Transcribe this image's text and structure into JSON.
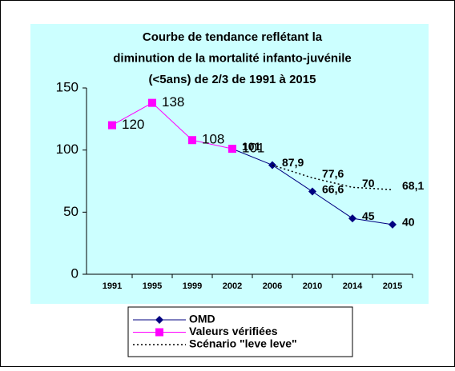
{
  "chart_data": {
    "type": "line",
    "title": [
      "Courbe de tendance reflétant la",
      "diminution de la mortalité infanto-juvénile",
      "(<5ans) de  2/3 de 1991 à 2015"
    ],
    "categories": [
      "1991",
      "1995",
      "1999",
      "2002",
      "2006",
      "2010",
      "2014",
      "2015"
    ],
    "series": [
      {
        "name": "OMD",
        "color": "#000080",
        "marker": "diamond",
        "values": [
          null,
          null,
          null,
          101,
          87.9,
          66.6,
          45,
          40
        ],
        "value_labels": [
          null,
          null,
          null,
          "101",
          "87,9",
          "66,6",
          "45",
          "40"
        ]
      },
      {
        "name": "Valeurs vérifiées",
        "color": "#ff00ff",
        "marker": "square",
        "values": [
          120,
          138,
          108,
          101,
          null,
          null,
          null,
          null
        ],
        "value_labels": [
          "120",
          "138",
          "108",
          "101",
          null,
          null,
          null,
          null
        ]
      },
      {
        "name": "Scénario \"leve leve\"",
        "color": "#000000",
        "dash": true,
        "values": [
          null,
          null,
          null,
          null,
          87.9,
          77.6,
          70,
          68.1
        ],
        "value_labels": [
          null,
          null,
          null,
          null,
          null,
          "77,6",
          "70",
          "68,1"
        ]
      }
    ],
    "ylim": [
      0,
      150
    ],
    "yticks": [
      0,
      50,
      100,
      150
    ],
    "grid": false,
    "legend": "bottom"
  }
}
